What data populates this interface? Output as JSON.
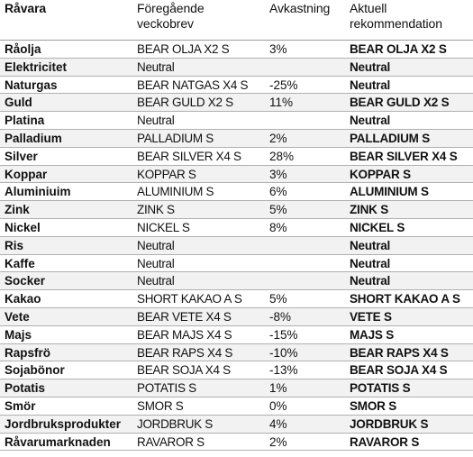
{
  "headers": {
    "col1": "Råvara",
    "col2": "Föregående\nveckobrev",
    "col3": "Avkastning",
    "col4": "Aktuell\nrekommendation"
  },
  "rows": [
    {
      "ravara": "Råolja",
      "foregaende": "BEAR OLJA X2 S",
      "avkastning": "3%",
      "aktuell": "BEAR OLJA X2 S"
    },
    {
      "ravara": "Elektricitet",
      "foregaende": "Neutral",
      "avkastning": "",
      "aktuell": "Neutral"
    },
    {
      "ravara": "Naturgas",
      "foregaende": "BEAR NATGAS X4 S",
      "avkastning": "-25%",
      "aktuell": "Neutral"
    },
    {
      "ravara": "Guld",
      "foregaende": "BEAR GULD X2 S",
      "avkastning": "11%",
      "aktuell": "BEAR GULD X2 S"
    },
    {
      "ravara": "Platina",
      "foregaende": "Neutral",
      "avkastning": "",
      "aktuell": "Neutral"
    },
    {
      "ravara": "Palladium",
      "foregaende": "PALLADIUM S",
      "avkastning": "2%",
      "aktuell": "PALLADIUM S"
    },
    {
      "ravara": "Silver",
      "foregaende": "BEAR SILVER X4 S",
      "avkastning": "28%",
      "aktuell": "BEAR SILVER X4 S"
    },
    {
      "ravara": "Koppar",
      "foregaende": "KOPPAR S",
      "avkastning": "3%",
      "aktuell": "KOPPAR S"
    },
    {
      "ravara": "Aluminiuim",
      "foregaende": "ALUMINIUM S",
      "avkastning": "6%",
      "aktuell": "ALUMINIUM S"
    },
    {
      "ravara": "Zink",
      "foregaende": "ZINK S",
      "avkastning": "5%",
      "aktuell": "ZINK S"
    },
    {
      "ravara": "Nickel",
      "foregaende": "NICKEL S",
      "avkastning": "8%",
      "aktuell": "NICKEL S"
    },
    {
      "ravara": "Ris",
      "foregaende": "Neutral",
      "avkastning": "",
      "aktuell": "Neutral"
    },
    {
      "ravara": "Kaffe",
      "foregaende": "Neutral",
      "avkastning": "",
      "aktuell": "Neutral"
    },
    {
      "ravara": "Socker",
      "foregaende": "Neutral",
      "avkastning": "",
      "aktuell": "Neutral"
    },
    {
      "ravara": "Kakao",
      "foregaende": "SHORT KAKAO A S",
      "avkastning": "5%",
      "aktuell": "SHORT KAKAO A S"
    },
    {
      "ravara": "Vete",
      "foregaende": "BEAR VETE X4 S",
      "avkastning": "-8%",
      "aktuell": "VETE S"
    },
    {
      "ravara": "Majs",
      "foregaende": "BEAR MAJS X4 S",
      "avkastning": "-15%",
      "aktuell": "MAJS S"
    },
    {
      "ravara": "Rapsfrö",
      "foregaende": "BEAR RAPS X4 S",
      "avkastning": "-10%",
      "aktuell": "BEAR RAPS X4 S"
    },
    {
      "ravara": "Sojabönor",
      "foregaende": "BEAR SOJA X4 S",
      "avkastning": "-13%",
      "aktuell": "BEAR SOJA X4 S"
    },
    {
      "ravara": "Potatis",
      "foregaende": "POTATIS S",
      "avkastning": "1%",
      "aktuell": "POTATIS S"
    },
    {
      "ravara": "Smör",
      "foregaende": "SMOR S",
      "avkastning": "0%",
      "aktuell": "SMOR S"
    },
    {
      "ravara": "Jordbruksprodukter",
      "foregaende": "JORDBRUK S",
      "avkastning": "4%",
      "aktuell": "JORDBRUK S"
    },
    {
      "ravara": "Råvarumarknaden",
      "foregaende": "RAVAROR S",
      "avkastning": "2%",
      "aktuell": "RAVAROR S"
    }
  ]
}
